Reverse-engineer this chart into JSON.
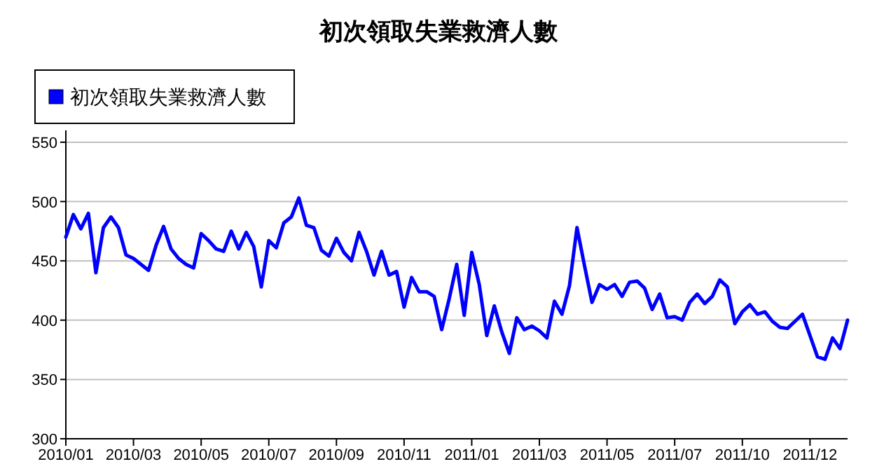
{
  "chart_data": {
    "type": "line",
    "title": "初次領取失業救濟人數",
    "categories": [
      "2010/01",
      null,
      null,
      null,
      null,
      null,
      null,
      null,
      null,
      "2010/03",
      null,
      null,
      null,
      null,
      null,
      null,
      null,
      null,
      "2010/05",
      null,
      null,
      null,
      null,
      null,
      null,
      null,
      null,
      "2010/07",
      null,
      null,
      null,
      null,
      null,
      null,
      null,
      null,
      "2010/09",
      null,
      null,
      null,
      null,
      null,
      null,
      null,
      null,
      "2010/11",
      null,
      null,
      null,
      null,
      null,
      null,
      null,
      null,
      "2011/01",
      null,
      null,
      null,
      null,
      null,
      null,
      null,
      null,
      "2011/03",
      null,
      null,
      null,
      null,
      null,
      null,
      null,
      null,
      "2011/05",
      null,
      null,
      null,
      null,
      null,
      null,
      null,
      null,
      "2011/07",
      null,
      null,
      null,
      null,
      null,
      null,
      null,
      null,
      "2011/10",
      null,
      null,
      null,
      null,
      null,
      null,
      null,
      null,
      "2011/12",
      null,
      null,
      null,
      null,
      null
    ],
    "series": [
      {
        "name": "初次領取失業救濟人數",
        "color": "#0000ff",
        "values": [
          470,
          489,
          477,
          490,
          440,
          478,
          487,
          478,
          455,
          452,
          447,
          442,
          463,
          479,
          460,
          452,
          447,
          444,
          473,
          467,
          460,
          458,
          475,
          460,
          474,
          462,
          428,
          467,
          461,
          482,
          487,
          503,
          480,
          478,
          459,
          454,
          469,
          457,
          450,
          474,
          458,
          438,
          458,
          438,
          441,
          411,
          436,
          424,
          424,
          420,
          392,
          418,
          447,
          404,
          457,
          430,
          387,
          412,
          390,
          372,
          402,
          392,
          395,
          391,
          385,
          416,
          405,
          429,
          478,
          446,
          415,
          430,
          426,
          430,
          420,
          432,
          433,
          427,
          409,
          422,
          402,
          403,
          400,
          415,
          422,
          414,
          420,
          434,
          428,
          397,
          407,
          413,
          405,
          407,
          399,
          394,
          393,
          399,
          405,
          387,
          369,
          367,
          385,
          376,
          400
        ]
      }
    ],
    "ylim": [
      300,
      560
    ],
    "yticks": [
      300,
      350,
      400,
      450,
      500,
      550
    ],
    "grid": "y",
    "legend": "top left"
  }
}
